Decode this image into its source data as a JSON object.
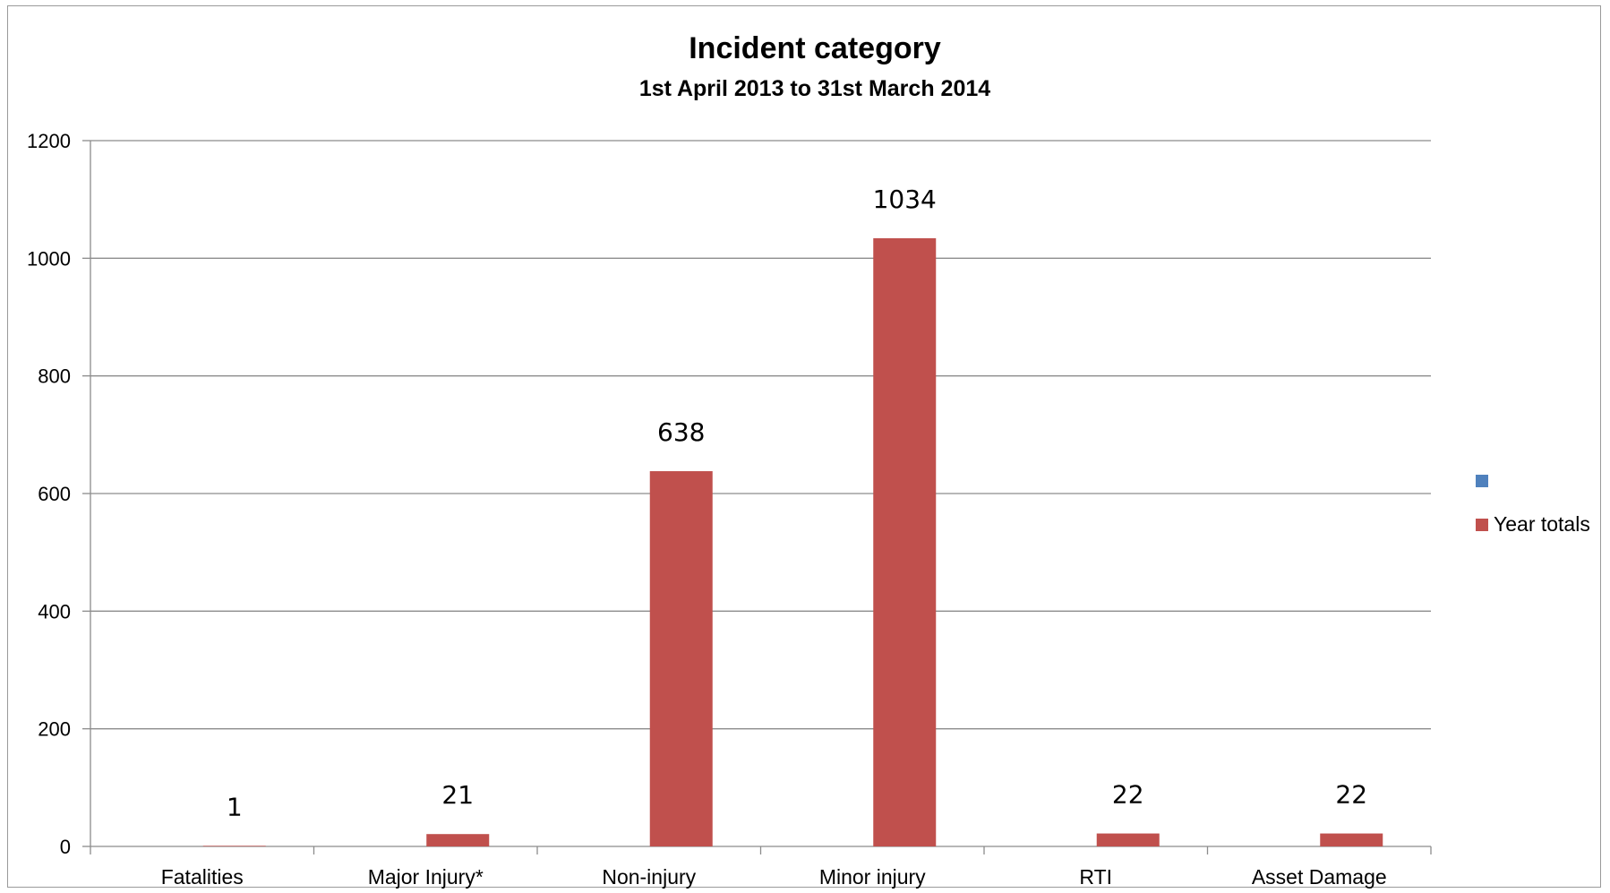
{
  "chart_data": {
    "type": "bar",
    "title": "Incident category",
    "subtitle": "1st April 2013 to 31st March 2014",
    "categories": [
      "Fatalities",
      "Major Injury*",
      "Non-injury",
      "Minor injury",
      "RTI",
      "Asset Damage"
    ],
    "series": [
      {
        "name": "",
        "color": "#4f81bd",
        "values": [
          0,
          0,
          0,
          0,
          0,
          0
        ]
      },
      {
        "name": "Year totals",
        "color": "#c0504d",
        "values": [
          1,
          21,
          638,
          1034,
          22,
          22
        ]
      }
    ],
    "data_labels": [
      "1",
      "21",
      "638",
      "1034",
      "22",
      "22"
    ],
    "ylim": [
      0,
      1200
    ],
    "yticks": [
      0,
      200,
      400,
      600,
      800,
      1000,
      1200
    ],
    "grid": true,
    "legend": "right"
  }
}
